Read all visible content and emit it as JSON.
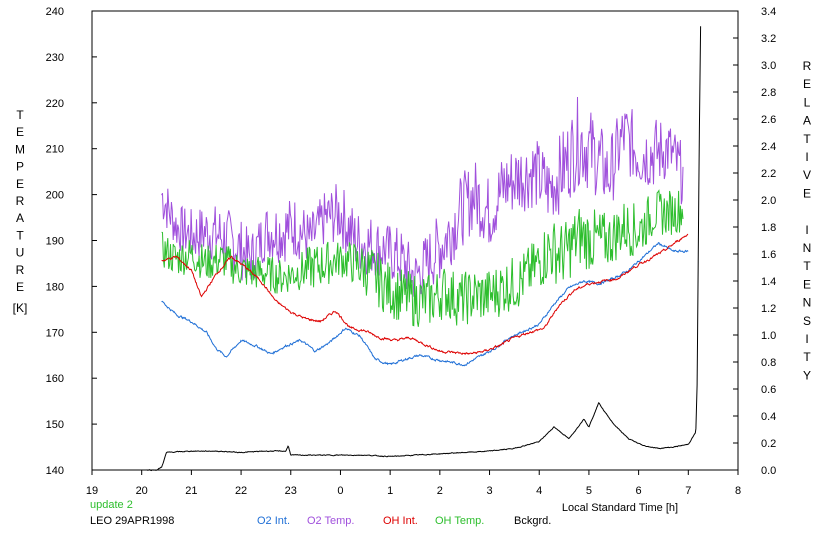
{
  "chart_data": {
    "type": "line",
    "left_axis": {
      "letters": [
        "T",
        "E",
        "M",
        "P",
        "E",
        "R",
        "A",
        "T",
        "U",
        "R",
        "E"
      ],
      "unit": "[K]",
      "ylim": [
        140,
        240
      ],
      "ticks": [
        140,
        150,
        160,
        170,
        180,
        190,
        200,
        210,
        220,
        230,
        240
      ]
    },
    "right_axis": {
      "words": [
        [
          "R",
          "E",
          "L",
          "A",
          "T",
          "I",
          "V",
          "E"
        ],
        [
          "I",
          "N",
          "T",
          "E",
          "N",
          "S",
          "I",
          "T",
          "Y"
        ]
      ],
      "ylim": [
        0.0,
        3.4
      ],
      "ticks": [
        "0.0",
        "0.2",
        "0.4",
        "0.6",
        "0.8",
        "1.0",
        "1.2",
        "1.4",
        "1.6",
        "1.8",
        "2.0",
        "2.2",
        "2.4",
        "2.6",
        "2.8",
        "3.0",
        "3.2",
        "3.4"
      ]
    },
    "x_axis": {
      "label": "Local Standard Time [h]",
      "tick_labels": [
        "19",
        "20",
        "21",
        "22",
        "23",
        "0",
        "1",
        "2",
        "3",
        "4",
        "5",
        "6",
        "7",
        "8"
      ]
    },
    "series": [
      {
        "name": "O2 Int.",
        "color": "#1f6fd6",
        "axis": "right",
        "x": [
          20.4,
          20.7,
          21.0,
          21.3,
          21.5,
          21.7,
          22.0,
          22.3,
          22.6,
          22.9,
          23.2,
          23.5,
          23.8,
          24.1,
          24.4,
          24.7,
          25.0,
          25.3,
          25.6,
          25.9,
          26.2,
          26.5,
          26.8,
          27.1,
          27.4,
          27.7,
          28.0,
          28.3,
          28.6,
          28.9,
          29.2,
          29.5,
          29.8,
          30.1,
          30.4,
          30.7,
          31.0
        ],
        "y": [
          1.25,
          1.15,
          1.1,
          1.02,
          0.9,
          0.84,
          0.96,
          0.92,
          0.86,
          0.92,
          0.96,
          0.88,
          0.95,
          1.05,
          0.99,
          0.82,
          0.78,
          0.82,
          0.85,
          0.82,
          0.8,
          0.78,
          0.84,
          0.9,
          0.98,
          1.03,
          1.08,
          1.23,
          1.35,
          1.4,
          1.38,
          1.42,
          1.48,
          1.58,
          1.68,
          1.62,
          1.62
        ]
      },
      {
        "name": "O2 Temp.",
        "color": "#a050dc",
        "axis": "left",
        "x": [
          20.4,
          20.7,
          21.0,
          21.3,
          21.6,
          21.9,
          22.2,
          22.5,
          22.8,
          23.1,
          23.4,
          23.7,
          24.0,
          24.3,
          24.6,
          24.9,
          25.2,
          25.5,
          25.8,
          26.1,
          26.4,
          26.7,
          27.0,
          27.3,
          27.6,
          27.9,
          28.2,
          28.5,
          28.8,
          29.1,
          29.4,
          29.7,
          30.0,
          30.3,
          30.6,
          30.9
        ],
        "y": [
          200,
          193,
          191,
          192,
          191,
          189,
          186,
          192,
          192,
          193,
          190,
          195,
          196,
          190,
          189,
          188,
          186,
          182,
          186,
          190,
          196,
          200,
          196,
          202,
          204,
          205,
          201,
          206,
          212,
          209,
          204,
          213,
          209,
          209,
          210,
          204
        ],
        "jitter": [
          6,
          5,
          6,
          6,
          7,
          7,
          6,
          6,
          7,
          7,
          6,
          6,
          7,
          7,
          7,
          6,
          7,
          6,
          7,
          8,
          8,
          8,
          8,
          8,
          8,
          8,
          8,
          9,
          10,
          9,
          8,
          8,
          8,
          8,
          7,
          7
        ]
      },
      {
        "name": "OH Int.",
        "color": "#dd0000",
        "axis": "right",
        "x": [
          20.4,
          20.7,
          21.0,
          21.2,
          21.5,
          21.8,
          22.1,
          22.4,
          22.7,
          23.0,
          23.3,
          23.6,
          23.9,
          24.2,
          24.5,
          24.8,
          25.1,
          25.4,
          25.7,
          26.0,
          26.3,
          26.6,
          26.9,
          27.2,
          27.5,
          27.8,
          28.1,
          28.4,
          28.7,
          29.0,
          29.3,
          29.6,
          29.9,
          30.2,
          30.5,
          30.8,
          31.0
        ],
        "y": [
          1.55,
          1.58,
          1.48,
          1.28,
          1.45,
          1.58,
          1.5,
          1.4,
          1.25,
          1.17,
          1.12,
          1.1,
          1.18,
          1.05,
          1.03,
          0.98,
          0.96,
          0.98,
          0.93,
          0.88,
          0.87,
          0.86,
          0.88,
          0.92,
          0.98,
          1.02,
          1.05,
          1.22,
          1.33,
          1.38,
          1.4,
          1.42,
          1.5,
          1.56,
          1.62,
          1.7,
          1.75
        ]
      },
      {
        "name": "OH Temp.",
        "color": "#2dbe2d",
        "axis": "left",
        "x": [
          20.4,
          20.7,
          21.0,
          21.3,
          21.6,
          21.9,
          22.2,
          22.5,
          22.8,
          23.1,
          23.4,
          23.7,
          24.0,
          24.3,
          24.6,
          24.9,
          25.2,
          25.5,
          25.8,
          26.1,
          26.4,
          26.7,
          27.0,
          27.3,
          27.6,
          27.9,
          28.2,
          28.5,
          28.8,
          29.1,
          29.4,
          29.7,
          30.0,
          30.3,
          30.6,
          30.9
        ],
        "y": [
          188,
          186,
          187,
          185,
          186,
          184,
          183,
          183,
          182,
          183,
          184,
          185,
          186,
          185,
          183,
          180,
          178,
          177,
          177,
          179,
          177,
          178,
          178,
          180,
          181,
          184,
          188,
          187,
          191,
          190,
          190,
          193,
          192,
          196,
          196,
          197
        ],
        "jitter": [
          4,
          4,
          4,
          4,
          4,
          4,
          4,
          4,
          4,
          4,
          5,
          5,
          4,
          5,
          6,
          6,
          6,
          6,
          6,
          6,
          6,
          6,
          6,
          6,
          6,
          6,
          7,
          7,
          7,
          7,
          6,
          6,
          6,
          5,
          5,
          5
        ]
      },
      {
        "name": "Bckgrd.",
        "color": "#000000",
        "axis": "right",
        "x": [
          20.1,
          20.3,
          20.4,
          20.5,
          21.0,
          21.5,
          22.0,
          22.5,
          22.9,
          22.95,
          23.0,
          23.5,
          24.0,
          24.5,
          25.0,
          25.5,
          26.0,
          26.5,
          27.0,
          27.5,
          28.0,
          28.3,
          28.6,
          28.9,
          29.0,
          29.2,
          29.3,
          29.5,
          29.8,
          30.1,
          30.4,
          30.7,
          31.0,
          31.15,
          31.18,
          31.22,
          31.25
        ],
        "y": [
          0.0,
          0.0,
          0.02,
          0.13,
          0.14,
          0.14,
          0.13,
          0.14,
          0.14,
          0.18,
          0.11,
          0.11,
          0.11,
          0.11,
          0.1,
          0.11,
          0.12,
          0.13,
          0.14,
          0.16,
          0.21,
          0.32,
          0.23,
          0.38,
          0.32,
          0.5,
          0.44,
          0.34,
          0.23,
          0.18,
          0.16,
          0.17,
          0.19,
          0.28,
          0.68,
          2.4,
          3.35
        ]
      }
    ]
  },
  "footer": {
    "update_text": "update 2",
    "station_text": "LEO 29APR1998",
    "legend": [
      {
        "label": "O2 Int.",
        "color": "#1f6fd6"
      },
      {
        "label": "O2 Temp.",
        "color": "#a050dc"
      },
      {
        "label": "OH Int.",
        "color": "#dd0000"
      },
      {
        "label": "OH Temp.",
        "color": "#2dbe2d"
      },
      {
        "label": "Bckgrd.",
        "color": "#000000"
      }
    ]
  }
}
